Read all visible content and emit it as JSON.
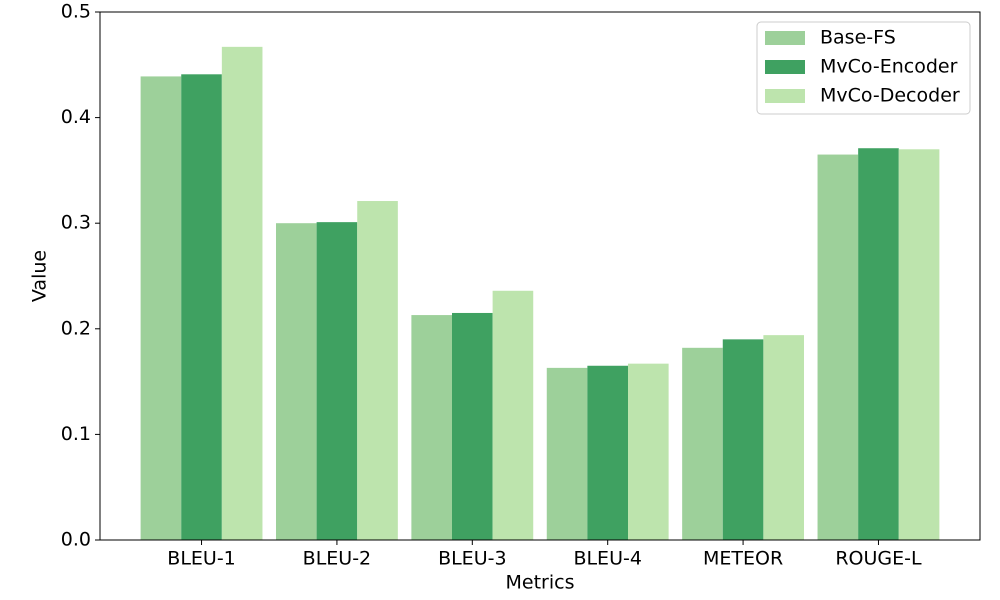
{
  "chart_data": {
    "type": "bar",
    "x_label": "Metrics",
    "y_label": "Value",
    "categories": [
      "BLEU-1",
      "BLEU-2",
      "BLEU-3",
      "BLEU-4",
      "METEOR",
      "ROUGE-L"
    ],
    "series": [
      {
        "name": "Base-FS",
        "color": "#9dd09a",
        "values": [
          0.439,
          0.3,
          0.213,
          0.163,
          0.182,
          0.365
        ]
      },
      {
        "name": "MvCo-Encoder",
        "color": "#3fa161",
        "values": [
          0.441,
          0.301,
          0.215,
          0.165,
          0.19,
          0.371
        ]
      },
      {
        "name": "MvCo-Decoder",
        "color": "#bde4ad",
        "values": [
          0.467,
          0.321,
          0.236,
          0.167,
          0.194,
          0.37
        ]
      }
    ],
    "ylim": [
      0,
      0.5
    ],
    "yticks": [
      {
        "value": 0,
        "label": "0.0"
      },
      0.1,
      0.2,
      0.3,
      0.4,
      0.5
    ],
    "legend": "upper-right"
  }
}
